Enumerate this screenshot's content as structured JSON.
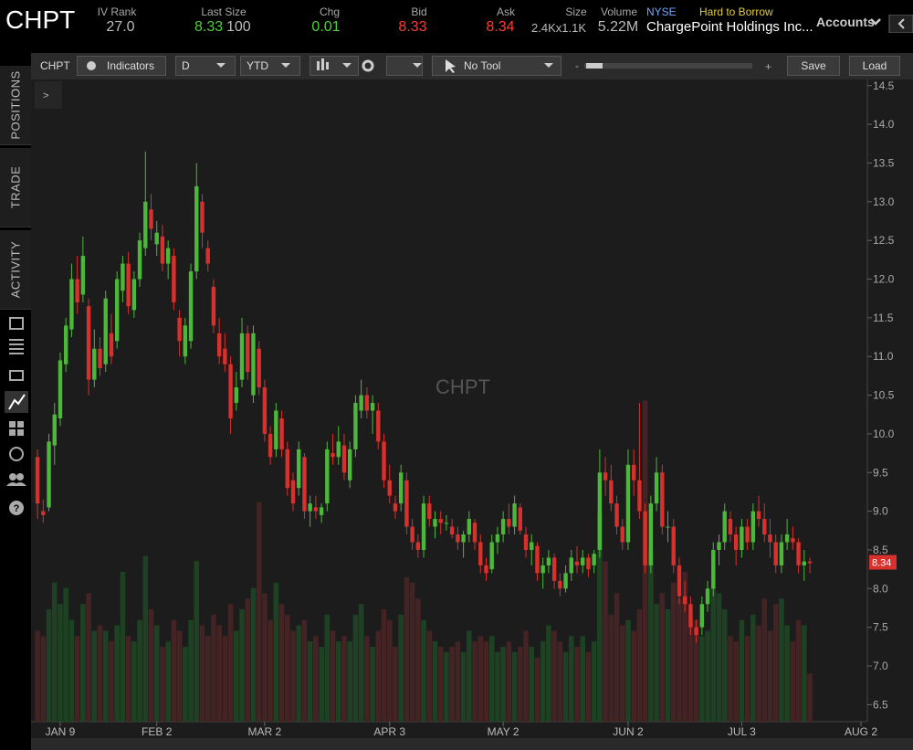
{
  "header": {
    "symbol": "CHPT",
    "iv_rank_label": "IV Rank",
    "iv_rank": "27.0",
    "last_size_label": "Last Size",
    "last": "8.33",
    "size": "100",
    "chg_label": "Chg",
    "chg": "0.01",
    "bid_label": "Bid",
    "bid": "8.33",
    "ask_label": "Ask",
    "ask": "8.34",
    "size_label": "Size",
    "bid_ask_size": "2.4Kx1.1K",
    "volume_label": "Volume",
    "volume": "5.22M",
    "exchange": "NYSE",
    "borrow": "Hard to Borrow",
    "company": "ChargePoint Holdings Inc...",
    "accounts": "Accounts"
  },
  "toolbar": {
    "symbol": "CHPT",
    "indicators": "Indicators",
    "interval": "D",
    "range": "YTD",
    "tool": "No Tool",
    "save": "Save",
    "load": "Load",
    "collapse": ">"
  },
  "sidebar": {
    "tabs": [
      "POSITIONS",
      "TRADE",
      "ACTIVITY"
    ]
  },
  "chart_data": {
    "type": "candlestick",
    "watermark": "CHPT",
    "up_color": "#4cb83a",
    "down_color": "#d8302c",
    "volume_up_color": "#1f4724",
    "volume_down_color": "#4a2525",
    "ylim": [
      6.28,
      14.58
    ],
    "yticks": [
      6.5,
      {
        "value": 7,
        "label": "7.0"
      },
      7.5,
      {
        "value": 8,
        "label": "8.0"
      },
      8.5,
      {
        "value": 9,
        "label": "9.0"
      },
      9.5,
      {
        "value": 10,
        "label": "10.0"
      },
      10.5,
      {
        "value": 11,
        "label": "11.0"
      },
      11.5,
      {
        "value": 12,
        "label": "12.0"
      },
      12.5,
      {
        "value": 13,
        "label": "13.0"
      },
      13.5,
      {
        "value": 14,
        "label": "14.0"
      },
      14.5
    ],
    "volume_lim": [
      0,
      60
    ],
    "last_price": 8.34,
    "categories": [
      null,
      null,
      null,
      null,
      "JAN 9",
      null,
      null,
      null,
      null,
      null,
      null,
      null,
      null,
      null,
      null,
      null,
      null,
      null,
      null,
      null,
      null,
      "FEB 2",
      null,
      null,
      null,
      null,
      null,
      null,
      null,
      null,
      null,
      null,
      null,
      null,
      null,
      null,
      null,
      null,
      null,
      null,
      "MAR 2",
      null,
      null,
      null,
      null,
      null,
      null,
      null,
      null,
      null,
      null,
      null,
      null,
      null,
      null,
      null,
      null,
      null,
      null,
      null,
      null,
      null,
      "APR 3",
      null,
      null,
      null,
      null,
      null,
      null,
      null,
      null,
      null,
      null,
      null,
      null,
      null,
      null,
      null,
      null,
      null,
      null,
      null,
      "MAY 2",
      null,
      null,
      null,
      null,
      null,
      null,
      null,
      null,
      null,
      null,
      null,
      null,
      null,
      null,
      null,
      null,
      null,
      null,
      null,
      null,
      null,
      "JUN 2",
      null,
      null,
      null,
      null,
      null,
      null,
      null,
      null,
      null,
      null,
      null,
      null,
      null,
      null,
      null,
      null,
      null,
      null,
      null,
      "JUL 3",
      null,
      null,
      null,
      null,
      null,
      null,
      null,
      null,
      null,
      null,
      null,
      null,
      null,
      null,
      null,
      null,
      null,
      null,
      null,
      null,
      "AUG 2"
    ],
    "open": [
      9.7,
      9.0,
      9.05,
      9.85,
      10.2,
      10.9,
      11.35,
      12.0,
      11.8,
      11.65,
      10.7,
      11.1,
      10.9,
      11.3,
      11.2,
      11.85,
      12.2,
      11.6,
      12.0,
      12.4,
      12.9,
      12.45,
      12.55,
      12.2,
      12.3,
      11.5,
      11.0,
      11.2,
      12.1,
      13.0,
      12.4,
      11.9,
      11.3,
      11.1,
      10.9,
      10.4,
      10.7,
      11.3,
      10.5,
      11.1,
      10.6,
      10.0,
      9.8,
      10.2,
      9.8,
      9.4,
      9.3,
      9.7,
      9.0,
      9.05,
      8.95,
      9.1,
      9.75,
      9.7,
      9.85,
      9.4,
      9.8,
      10.3,
      10.5,
      10.3,
      10.3,
      9.9,
      9.4,
      9.1,
      9.1,
      9.4,
      8.8,
      8.6,
      8.5,
      9.1,
      8.8,
      8.9,
      8.85,
      8.8,
      8.7,
      8.6,
      8.7,
      8.85,
      8.6,
      8.3,
      8.25,
      8.6,
      8.7,
      8.9,
      8.8,
      9.05,
      8.7,
      8.5,
      8.55,
      8.2,
      8.3,
      8.4,
      8.1,
      8.0,
      8.2,
      8.35,
      8.3,
      8.4,
      8.3,
      8.5,
      9.5,
      9.4,
      9.1,
      8.8,
      8.6,
      9.6,
      9.4,
      9.0,
      8.3,
      9.1,
      9.5,
      8.8,
      8.8,
      8.3,
      7.9,
      7.8,
      7.5,
      7.5,
      7.8,
      8.0,
      8.5,
      8.6,
      8.9,
      8.7,
      8.5,
      8.8,
      8.6,
      9.0,
      8.9,
      8.7,
      8.6,
      8.3,
      8.6,
      8.65,
      8.6,
      8.3,
      8.35,
      null,
      null,
      null,
      null,
      null,
      null,
      null,
      null,
      null
    ],
    "high": [
      9.8,
      9.15,
      10.0,
      10.4,
      11.05,
      11.5,
      12.2,
      12.3,
      12.55,
      11.75,
      11.35,
      11.25,
      11.85,
      11.55,
      12.1,
      12.3,
      12.35,
      12.1,
      12.6,
      13.65,
      13.1,
      12.75,
      12.7,
      12.5,
      12.4,
      11.6,
      11.5,
      12.2,
      13.5,
      13.1,
      12.5,
      12.0,
      11.5,
      11.3,
      11.0,
      10.8,
      11.5,
      11.4,
      11.4,
      11.2,
      10.7,
      10.1,
      10.4,
      10.3,
      9.9,
      9.5,
      9.9,
      9.75,
      9.2,
      9.2,
      9.1,
      9.9,
      10.0,
      10.1,
      10.0,
      9.9,
      10.5,
      10.7,
      10.6,
      10.5,
      10.4,
      10.0,
      9.6,
      9.2,
      9.6,
      9.5,
      8.9,
      8.7,
      9.2,
      9.2,
      9.0,
      9.0,
      8.95,
      8.9,
      8.8,
      8.75,
      9.0,
      8.9,
      8.7,
      8.4,
      8.7,
      8.8,
      9.0,
      9.1,
      9.2,
      9.1,
      8.8,
      8.7,
      8.6,
      8.4,
      8.5,
      8.45,
      8.2,
      8.3,
      8.5,
      8.55,
      8.5,
      8.45,
      8.5,
      9.8,
      9.7,
      9.6,
      9.2,
      8.9,
      9.8,
      9.8,
      10.4,
      9.1,
      9.2,
      9.7,
      9.6,
      9.0,
      8.9,
      8.4,
      8.1,
      7.9,
      7.6,
      7.9,
      8.1,
      8.6,
      8.7,
      9.1,
      9.0,
      8.8,
      8.9,
      8.9,
      9.1,
      9.2,
      9.1,
      8.9,
      8.7,
      8.7,
      8.9,
      8.8,
      8.65,
      8.5,
      8.4,
      null,
      null,
      null,
      null,
      null,
      null,
      null,
      null,
      null
    ],
    "low": [
      8.9,
      8.85,
      9.0,
      9.6,
      10.1,
      10.8,
      11.25,
      11.55,
      11.7,
      10.5,
      10.6,
      10.75,
      10.8,
      10.9,
      11.1,
      11.7,
      11.55,
      11.5,
      11.9,
      12.3,
      12.5,
      12.3,
      12.1,
      12.0,
      11.6,
      11.0,
      10.9,
      11.1,
      12.0,
      12.4,
      12.1,
      11.3,
      10.9,
      10.8,
      10.0,
      10.3,
      10.6,
      10.7,
      10.4,
      10.5,
      9.9,
      9.6,
      9.7,
      9.7,
      9.2,
      9.0,
      9.2,
      8.9,
      8.8,
      8.9,
      8.85,
      9.0,
      9.6,
      9.6,
      9.4,
      9.3,
      9.7,
      10.2,
      10.2,
      10.0,
      9.8,
      9.3,
      9.1,
      8.9,
      9.0,
      8.7,
      8.5,
      8.4,
      8.4,
      8.8,
      8.65,
      8.7,
      8.75,
      8.65,
      8.5,
      8.4,
      8.6,
      8.5,
      8.2,
      8.1,
      8.2,
      8.45,
      8.6,
      8.7,
      8.7,
      8.7,
      8.4,
      8.3,
      8.1,
      8.0,
      8.2,
      8.0,
      7.9,
      7.95,
      8.1,
      8.2,
      8.2,
      8.15,
      8.2,
      8.4,
      9.2,
      9.0,
      8.7,
      8.5,
      8.5,
      9.2,
      8.9,
      8.2,
      8.2,
      9.0,
      8.7,
      8.6,
      8.2,
      7.8,
      7.7,
      7.4,
      7.3,
      7.4,
      7.7,
      7.9,
      8.3,
      8.5,
      8.6,
      8.3,
      8.4,
      8.5,
      8.5,
      8.8,
      8.6,
      8.4,
      8.2,
      8.2,
      8.5,
      8.5,
      8.2,
      8.1,
      8.2,
      null,
      null,
      null,
      null,
      null,
      null,
      null,
      null,
      null
    ],
    "close": [
      9.1,
      8.95,
      9.9,
      10.25,
      10.95,
      11.4,
      12.0,
      11.7,
      12.3,
      10.7,
      11.1,
      10.85,
      11.75,
      11.0,
      12.0,
      12.2,
      11.65,
      12.0,
      12.5,
      13.0,
      12.65,
      12.6,
      12.2,
      12.4,
      11.7,
      11.2,
      11.4,
      12.1,
      13.2,
      12.6,
      12.2,
      11.4,
      11.0,
      10.9,
      10.2,
      10.6,
      11.3,
      10.8,
      11.3,
      10.6,
      10.0,
      9.7,
      10.3,
      9.8,
      9.3,
      9.1,
      9.8,
      9.0,
      9.1,
      9.0,
      9.05,
      9.8,
      9.7,
      9.9,
      9.5,
      9.8,
      10.4,
      10.5,
      10.3,
      10.4,
      9.9,
      9.4,
      9.2,
      9.0,
      9.5,
      8.8,
      8.6,
      8.5,
      9.1,
      8.9,
      8.9,
      8.85,
      8.85,
      8.7,
      8.6,
      8.7,
      8.9,
      8.6,
      8.3,
      8.2,
      8.6,
      8.7,
      8.9,
      8.8,
      9.1,
      8.75,
      8.5,
      8.6,
      8.2,
      8.3,
      8.4,
      8.1,
      8.0,
      8.2,
      8.4,
      8.3,
      8.4,
      8.25,
      8.45,
      9.5,
      9.4,
      9.1,
      8.8,
      8.6,
      9.6,
      9.4,
      9.0,
      8.3,
      9.1,
      9.5,
      8.8,
      8.8,
      8.3,
      7.9,
      7.8,
      7.5,
      7.4,
      7.8,
      8.0,
      8.5,
      8.6,
      9.0,
      8.7,
      8.5,
      8.8,
      8.6,
      9.0,
      8.9,
      8.7,
      8.6,
      8.3,
      8.6,
      8.7,
      8.6,
      8.3,
      8.35,
      8.33,
      null,
      null,
      null,
      null,
      null,
      null,
      null,
      null,
      null
    ],
    "volume": [
      8.5,
      8.0,
      10.5,
      13.0,
      11.0,
      12.5,
      9.5,
      8.0,
      11.0,
      12.0,
      8.5,
      9.0,
      8.5,
      7.5,
      9.0,
      14.0,
      8.0,
      7.5,
      9.5,
      15.5,
      10.5,
      9.0,
      7.0,
      7.5,
      9.5,
      8.5,
      7.0,
      9.5,
      15.0,
      9.0,
      8.0,
      10.0,
      9.0,
      8.0,
      11.0,
      8.5,
      10.5,
      11.5,
      12.5,
      20.5,
      12.0,
      9.5,
      13.0,
      11.0,
      10.0,
      8.5,
      9.0,
      9.5,
      7.5,
      8.0,
      7.0,
      10.0,
      8.5,
      7.5,
      8.0,
      7.5,
      10.0,
      11.0,
      8.0,
      7.0,
      8.5,
      10.5,
      9.5,
      7.0,
      10.0,
      13.5,
      13.0,
      11.5,
      9.5,
      8.5,
      7.5,
      7.0,
      6.5,
      7.0,
      7.5,
      6.5,
      8.5,
      7.5,
      8.0,
      7.5,
      8.0,
      6.5,
      7.0,
      7.5,
      6.5,
      7.0,
      8.5,
      7.0,
      6.0,
      7.5,
      9.0,
      8.5,
      7.5,
      6.5,
      8.0,
      7.0,
      8.0,
      6.5,
      7.5,
      19.5,
      15.0,
      10.0,
      12.0,
      9.0,
      9.5,
      8.5,
      10.5,
      30.0,
      16.0,
      11.0,
      12.0,
      10.5,
      13.0,
      11.5,
      14.0,
      10.0,
      9.5,
      8.0,
      8.5,
      12.5,
      12.0,
      10.5,
      8.0,
      7.5,
      9.5,
      8.0,
      10.0,
      9.0,
      11.5,
      8.5,
      11.0,
      11.5,
      9.0,
      7.5,
      9.5,
      9.0,
      4.5,
      null,
      null,
      null,
      null,
      null,
      null,
      null,
      null,
      null
    ]
  }
}
